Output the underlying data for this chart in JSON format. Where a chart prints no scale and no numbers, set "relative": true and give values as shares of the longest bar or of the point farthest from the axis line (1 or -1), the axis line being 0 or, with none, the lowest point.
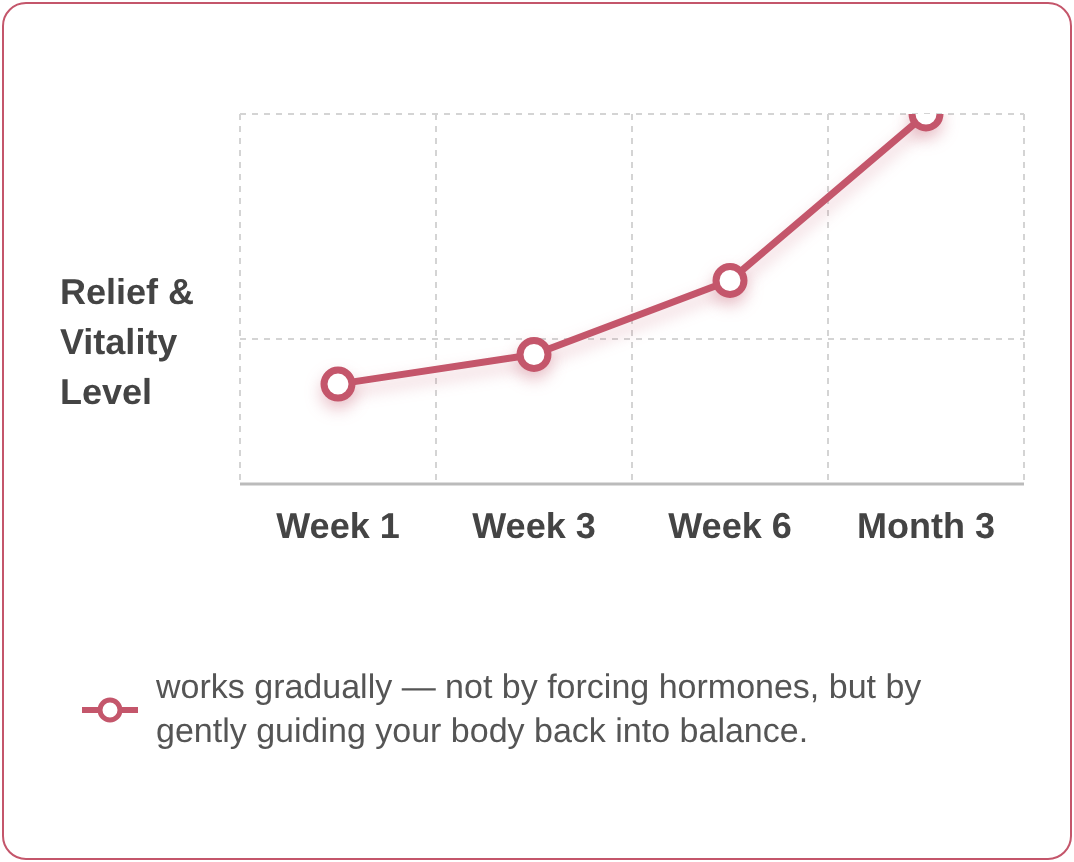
{
  "chart_data": {
    "type": "line",
    "ylabel": "Relief & Vitality Level",
    "categories": [
      "Week 1",
      "Week 3",
      "Week 6",
      "Month 3"
    ],
    "relative": true,
    "series": [
      {
        "name": "works gradually — not by forcing hormones, but by gently guiding your body back into balance.",
        "color": "#c4566b",
        "values": [
          0.27,
          0.35,
          0.55,
          1
        ]
      }
    ],
    "grid": true,
    "legend": "bottom",
    "marker": "circle",
    "line_style": "solid"
  }
}
